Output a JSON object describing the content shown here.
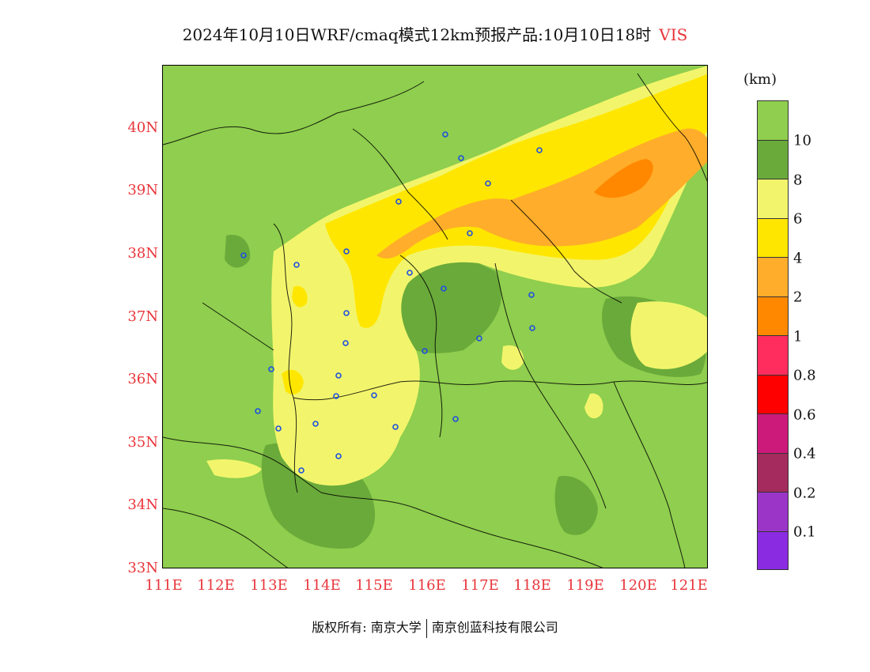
{
  "title": {
    "main": "2024年10月10日WRF/cmaq模式12km预报产品:10月10日18时",
    "variable": "VIS"
  },
  "map": {
    "lat_labels": [
      "40N",
      "39N",
      "38N",
      "37N",
      "36N",
      "35N",
      "34N",
      "33N"
    ],
    "lon_labels": [
      "111E",
      "112E",
      "113E",
      "114E",
      "115E",
      "116E",
      "117E",
      "118E",
      "119E",
      "120E",
      "121E"
    ]
  },
  "legend": {
    "unit": "(km)",
    "labels": [
      "10",
      "8",
      "6",
      "4",
      "2",
      "1",
      "0.8",
      "0.6",
      "0.4",
      "0.2",
      "0.1"
    ],
    "colors": [
      "#8fce4e",
      "#6aaa3a",
      "#f2f56b",
      "#ffe600",
      "#ffad2a",
      "#ff8800",
      "#ff2d5e",
      "#ff0000",
      "#cc1a7a",
      "#a52a5e",
      "#9b35c8",
      "#8a2be2"
    ]
  },
  "footer": {
    "copyright": "版权所有: 南京大学",
    "company": "南京创蓝科技有限公司"
  }
}
